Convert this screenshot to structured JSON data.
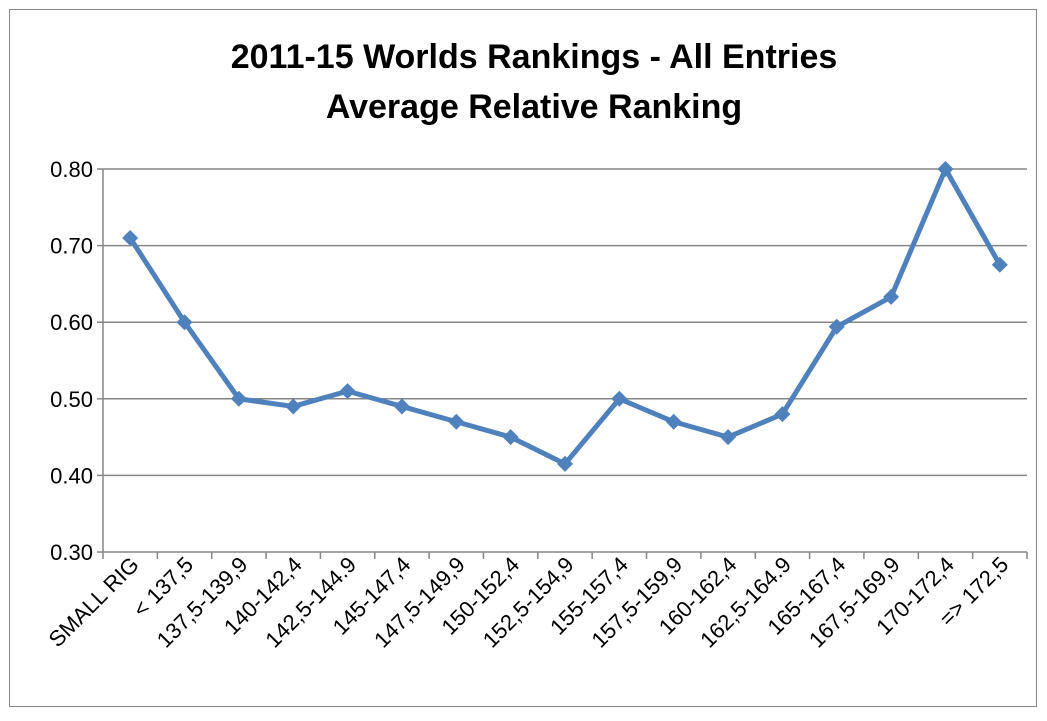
{
  "chart_data": {
    "type": "line",
    "title": "2011-15 Worlds Rankings - All Entries",
    "subtitle": "Average Relative Ranking",
    "categories": [
      "SMALL RIG",
      "< 137,5",
      "137,5-139,9",
      "140-142,4",
      "142,5-144.9",
      "145-147,4",
      "147,5-149,9",
      "150-152,4",
      "152,5-154,9",
      "155-157,4",
      "157,5-159,9",
      "160-162,4",
      "162,5-164.9",
      "165-167,4",
      "167,5-169,9",
      "170-172,4",
      "=> 172,5"
    ],
    "series": [
      {
        "name": "Average Relative Ranking",
        "color": "#4f81bd",
        "values": [
          0.71,
          0.6,
          0.5,
          0.49,
          0.51,
          0.49,
          0.47,
          0.45,
          0.415,
          0.5,
          0.47,
          0.45,
          0.48,
          0.594,
          0.633,
          0.8,
          0.675
        ]
      }
    ],
    "ylim": [
      0.3,
      0.8
    ],
    "yticks": [
      {
        "value": 0.3,
        "label": "0.30"
      },
      {
        "value": 0.4,
        "label": "0.40"
      },
      {
        "value": 0.5,
        "label": "0.50"
      },
      {
        "value": 0.6,
        "label": "0.60"
      },
      {
        "value": 0.7,
        "label": "0.70"
      },
      {
        "value": 0.8,
        "label": "0.80"
      }
    ],
    "grid": true
  }
}
